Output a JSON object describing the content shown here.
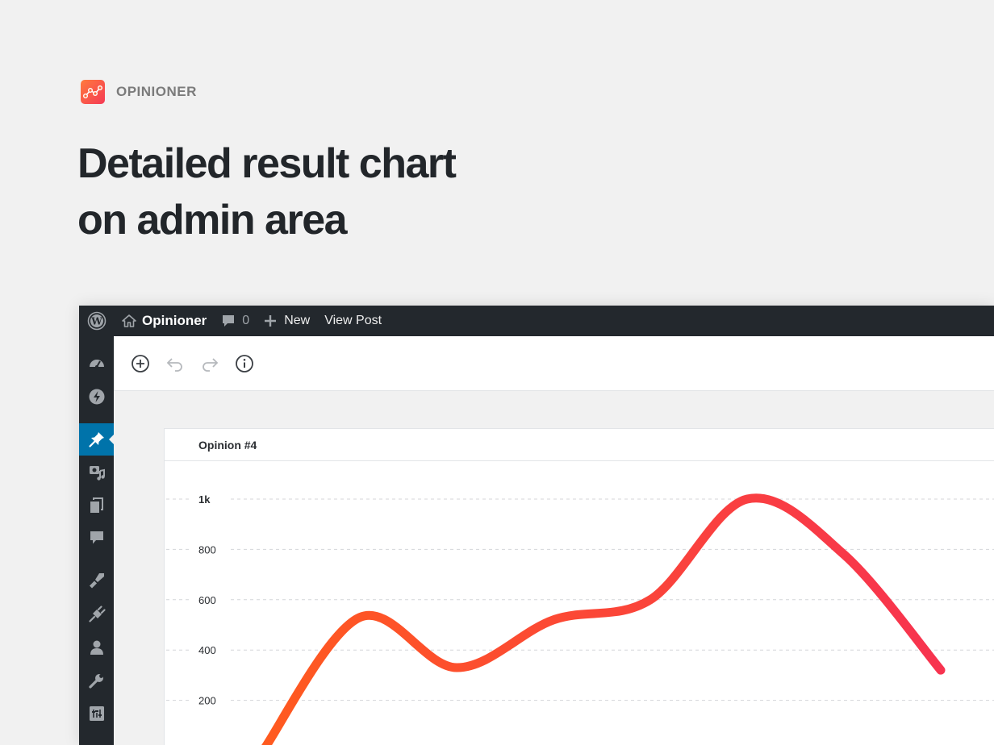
{
  "brand": {
    "name": "OPINIONER"
  },
  "headline": {
    "line1": "Detailed result chart",
    "line2": "on admin area"
  },
  "adminbar": {
    "site_name": "Opinioner",
    "comments_count": "0",
    "new_label": "New",
    "view_post_label": "View Post"
  },
  "panel": {
    "title": "Opinion #4"
  },
  "chart_data": {
    "type": "line",
    "title": "",
    "xlabel": "",
    "ylabel": "",
    "y_tick_labels": [
      "1k",
      "800",
      "600",
      "400",
      "200"
    ],
    "ylim": [
      0,
      1000
    ],
    "grid": true,
    "series": [
      {
        "x": [
          0,
          1,
          2,
          3,
          4,
          5,
          6,
          7
        ],
        "values": [
          0,
          530,
          330,
          520,
          600,
          1000,
          780,
          320
        ],
        "color_start": "#ff5a1f",
        "color_end": "#f7334f"
      }
    ]
  }
}
